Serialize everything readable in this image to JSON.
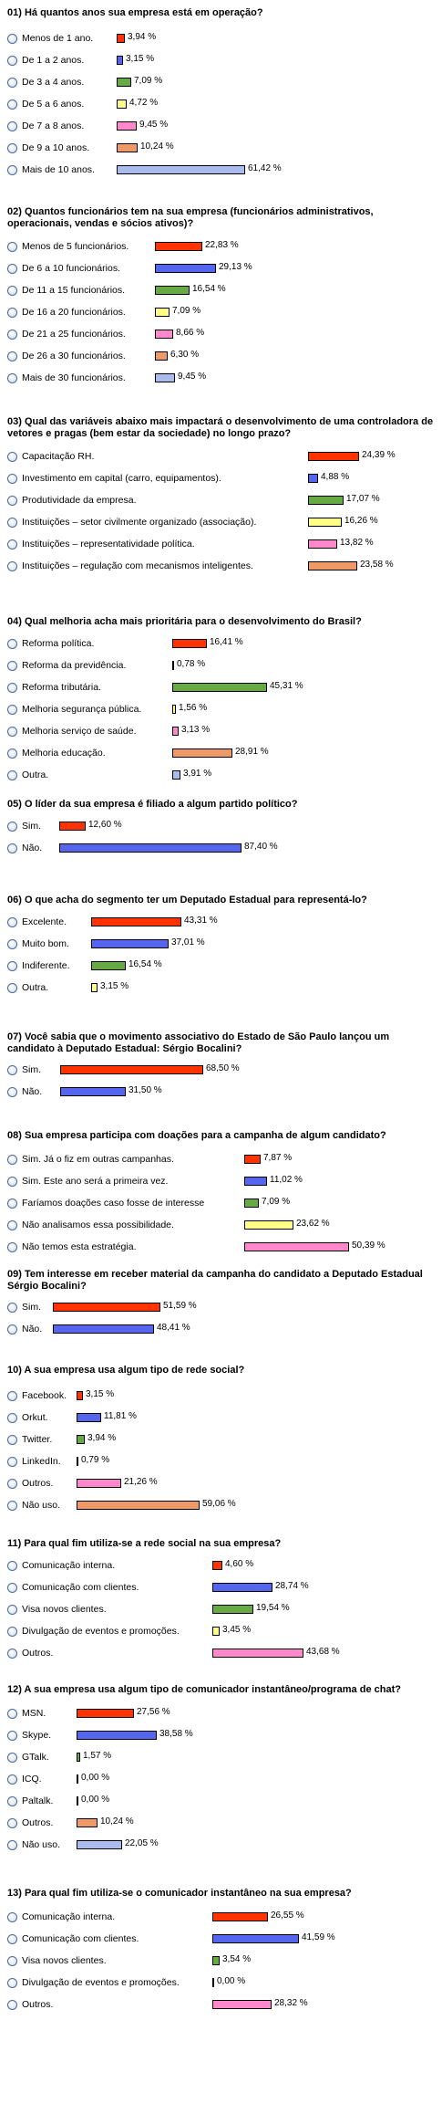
{
  "chart_data": [
    {
      "type": "bar",
      "title": "01) Há quantos anos sua empresa está em operação?",
      "categories": [
        "Menos de 1 ano.",
        "De 1 a 2 anos.",
        "De 3 a 4 anos.",
        "De 5 a 6 anos.",
        "De 7 a 8 anos.",
        "De 9 a 10 anos.",
        "Mais de 10 anos."
      ],
      "values": [
        3.94,
        3.15,
        7.09,
        4.72,
        9.45,
        10.24,
        61.42
      ],
      "labels": [
        "3,94 %",
        "3,15 %",
        "7,09 %",
        "4,72 %",
        "9,45 %",
        "10,24 %",
        "61,42 %"
      ],
      "colors": [
        "#ff3300",
        "#5566ee",
        "#66aa44",
        "#ffff88",
        "#ff88cc",
        "#ee9966",
        "#aabbee"
      ]
    },
    {
      "type": "bar",
      "title": "02) Quantos funcionários tem na sua empresa (funcionários administrativos, operacionais, vendas e sócios ativos)?",
      "categories": [
        "Menos de 5 funcionários.",
        "De 6 a 10 funcionários.",
        "De 11 a 15 funcionários.",
        "De 16 a 20 funcionários.",
        "De 21 a 25 funcionários.",
        "De 26 a 30 funcionários.",
        "Mais de 30 funcionários."
      ],
      "values": [
        22.83,
        29.13,
        16.54,
        7.09,
        8.66,
        6.3,
        9.45
      ],
      "labels": [
        "22,83 %",
        "29,13 %",
        "16,54 %",
        "7,09 %",
        "8,66 %",
        "6,30 %",
        "9,45 %"
      ],
      "colors": [
        "#ff3300",
        "#5566ee",
        "#66aa44",
        "#ffff88",
        "#ff88cc",
        "#ee9966",
        "#aabbee"
      ]
    },
    {
      "type": "bar",
      "title": "03) Qual das variáveis abaixo mais impactará o desenvolvimento de uma controladora de vetores e pragas (bem estar da sociedade) no longo prazo?",
      "categories": [
        "Capacitação RH.",
        "Investimento em capital (carro, equipamentos).",
        "Produtividade da empresa.",
        "Instituições – setor civilmente organizado (associação).",
        "Instituições – representatividade política.",
        "Instituições – regulação com mecanismos inteligentes."
      ],
      "values": [
        24.39,
        4.88,
        17.07,
        16.26,
        13.82,
        23.58
      ],
      "labels": [
        "24,39 %",
        "4,88 %",
        "17,07 %",
        "16,26 %",
        "13,82 %",
        "23,58 %"
      ],
      "colors": [
        "#ff3300",
        "#5566ee",
        "#66aa44",
        "#ffff88",
        "#ff88cc",
        "#ee9966"
      ]
    },
    {
      "type": "bar",
      "title": "04) Qual melhoria acha mais prioritária para o desenvolvimento do Brasil?",
      "categories": [
        "Reforma política.",
        "Reforma da previdência.",
        "Reforma tributária.",
        "Melhoria segurança pública.",
        "Melhoria serviço de saúde.",
        "Melhoria educação.",
        "Outra."
      ],
      "values": [
        16.41,
        0.78,
        45.31,
        1.56,
        3.13,
        28.91,
        3.91
      ],
      "labels": [
        "16,41 %",
        "0,78 %",
        "45,31 %",
        "1,56 %",
        "3,13 %",
        "28,91 %",
        "3,91 %"
      ],
      "colors": [
        "#ff3300",
        "#5566ee",
        "#66aa44",
        "#ffff88",
        "#ff88cc",
        "#ee9966",
        "#aabbee"
      ]
    },
    {
      "type": "bar",
      "title": "05) O líder da sua empresa é filiado a algum partido político?",
      "categories": [
        "Sim.",
        "Não."
      ],
      "values": [
        12.6,
        87.4
      ],
      "labels": [
        "12,60 %",
        "87,40 %"
      ],
      "colors": [
        "#ff3300",
        "#5566ee"
      ]
    },
    {
      "type": "bar",
      "title": "06) O que acha do segmento ter um Deputado Estadual para representá-lo?",
      "categories": [
        "Excelente.",
        "Muito bom.",
        "Indiferente.",
        "Outra."
      ],
      "values": [
        43.31,
        37.01,
        16.54,
        3.15
      ],
      "labels": [
        "43,31 %",
        "37,01 %",
        "16,54 %",
        "3,15 %"
      ],
      "colors": [
        "#ff3300",
        "#5566ee",
        "#66aa44",
        "#ffff88"
      ]
    },
    {
      "type": "bar",
      "title": "07) Você sabia que o movimento associativo do Estado de São Paulo lançou um candidato à Deputado Estadual: Sérgio Bocalini?",
      "categories": [
        "Sim.",
        "Não."
      ],
      "values": [
        68.5,
        31.5
      ],
      "labels": [
        "68,50 %",
        "31,50 %"
      ],
      "colors": [
        "#ff3300",
        "#5566ee"
      ]
    },
    {
      "type": "bar",
      "title": "08) Sua empresa participa com doações para a campanha de algum candidato?",
      "categories": [
        "Sim. Já o fiz em outras campanhas.",
        "Sim. Este ano será a primeira vez.",
        "Faríamos doações caso fosse de interesse",
        "Não analisamos essa possibilidade.",
        "Não temos esta estratégia."
      ],
      "values": [
        7.87,
        11.02,
        7.09,
        23.62,
        50.39
      ],
      "labels": [
        "7,87 %",
        "11,02 %",
        "7,09 %",
        "23,62 %",
        "50,39 %"
      ],
      "colors": [
        "#ff3300",
        "#5566ee",
        "#66aa44",
        "#ffff88",
        "#ff88cc"
      ]
    },
    {
      "type": "bar",
      "title": "09) Tem interesse em receber material da campanha do candidato a Deputado Estadual Sérgio Bocalini?",
      "categories": [
        "Sim.",
        "Não."
      ],
      "values": [
        51.59,
        48.41
      ],
      "labels": [
        "51,59 %",
        "48,41 %"
      ],
      "colors": [
        "#ff3300",
        "#5566ee"
      ]
    },
    {
      "type": "bar",
      "title": "10) A sua empresa usa algum tipo de rede social?",
      "categories": [
        "Facebook.",
        "Orkut.",
        "Twitter.",
        "LinkedIn.",
        "Outros.",
        "Não uso."
      ],
      "values": [
        3.15,
        11.81,
        3.94,
        0.79,
        21.26,
        59.06
      ],
      "labels": [
        "3,15 %",
        "11,81 %",
        "3,94 %",
        "0,79 %",
        "21,26 %",
        "59,06 %"
      ],
      "colors": [
        "#ff3300",
        "#5566ee",
        "#66aa44",
        "#ffff88",
        "#ff88cc",
        "#ee9966"
      ]
    },
    {
      "type": "bar",
      "title": "11) Para qual fim utiliza-se a rede social na sua empresa?",
      "categories": [
        "Comunicação interna.",
        "Comunicação com clientes.",
        "Visa novos clientes.",
        "Divulgação de eventos e promoções.",
        "Outros."
      ],
      "values": [
        4.6,
        28.74,
        19.54,
        3.45,
        43.68
      ],
      "labels": [
        "4,60 %",
        "28,74 %",
        "19,54 %",
        "3,45 %",
        "43,68 %"
      ],
      "colors": [
        "#ff3300",
        "#5566ee",
        "#66aa44",
        "#ffff88",
        "#ff88cc"
      ]
    },
    {
      "type": "bar",
      "title": "12) A sua empresa usa algum tipo de comunicador instantâneo/programa de chat?",
      "categories": [
        "MSN.",
        "Skype.",
        "GTalk.",
        "ICQ.",
        "Paltalk.",
        "Outros.",
        "Não uso."
      ],
      "values": [
        27.56,
        38.58,
        1.57,
        0.0,
        0.0,
        10.24,
        22.05
      ],
      "labels": [
        "27,56 %",
        "38,58 %",
        "1,57 %",
        "0,00 %",
        "0,00 %",
        "10,24 %",
        "22,05 %"
      ],
      "colors": [
        "#ff3300",
        "#5566ee",
        "#66aa44",
        "#ffff88",
        "#ff88cc",
        "#ee9966",
        "#aabbee"
      ]
    },
    {
      "type": "bar",
      "title": "13) Para qual fim utiliza-se o comunicador instantâneo na sua empresa?",
      "categories": [
        "Comunicação interna.",
        "Comunicação com clientes.",
        "Visa novos clientes.",
        "Divulgação de eventos e promoções.",
        "Outros."
      ],
      "values": [
        26.55,
        41.59,
        3.54,
        0.0,
        28.32
      ],
      "labels": [
        "26,55 %",
        "41,59 %",
        "3,54 %",
        "0,00 %",
        "28,32 %"
      ],
      "colors": [
        "#ff3300",
        "#5566ee",
        "#66aa44",
        "#ffff88",
        "#ff88cc"
      ]
    }
  ]
}
